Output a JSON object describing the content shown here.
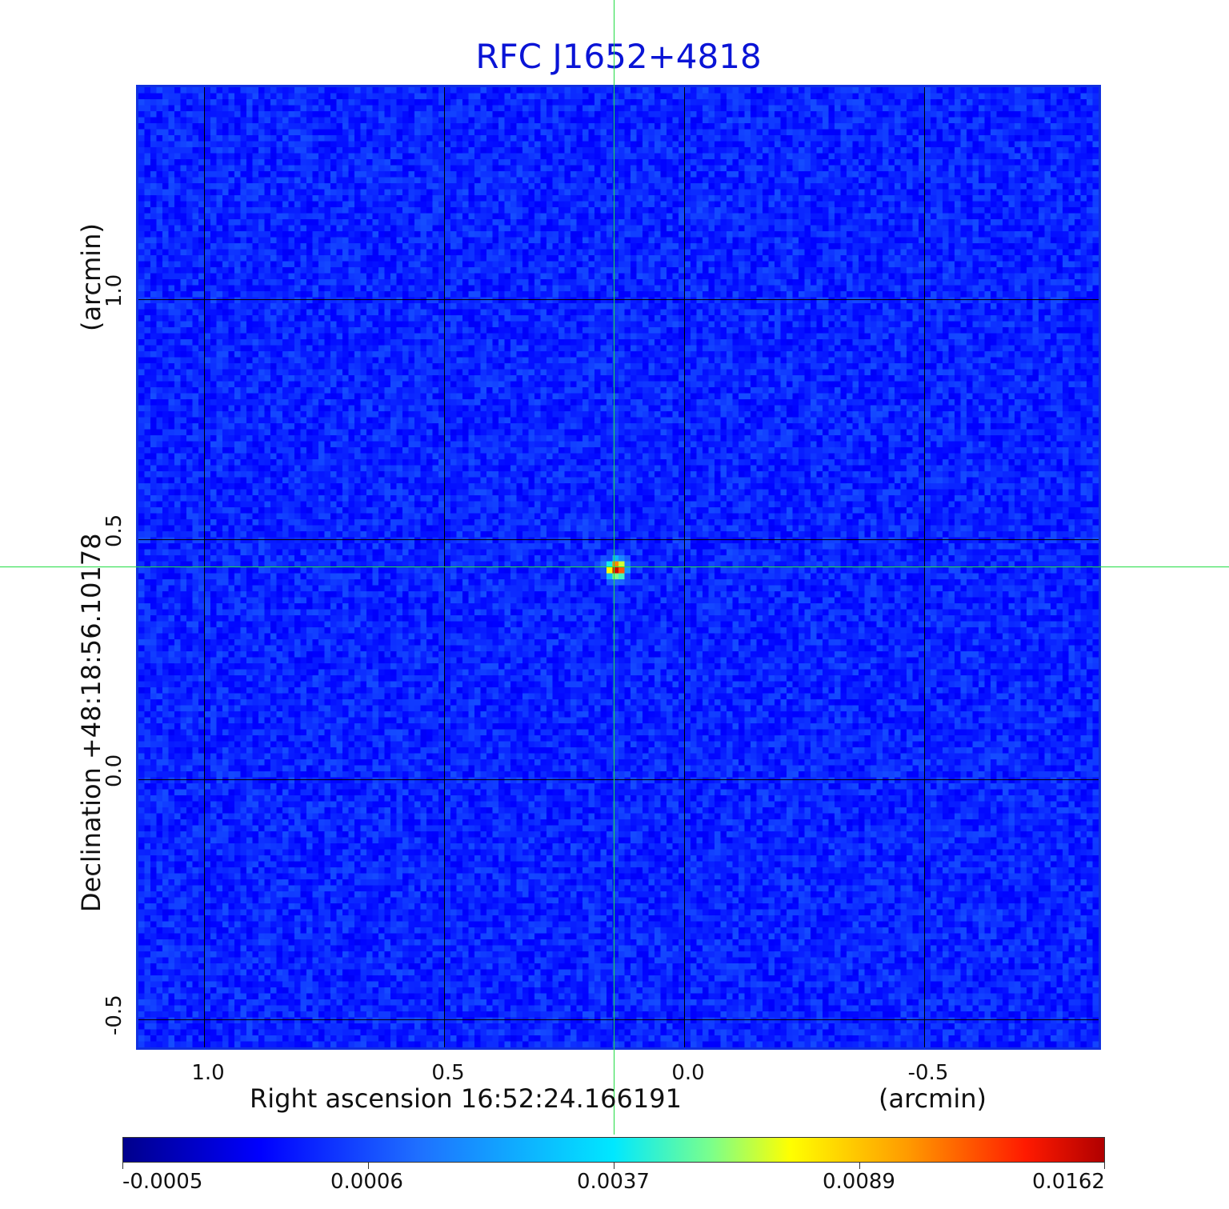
{
  "title": "RFC J1652+4818",
  "x_axis": {
    "label": "Right ascension  16:52:24.166191",
    "unit": "(arcmin)",
    "ticks": [
      "1.0",
      "0.5",
      "0.0",
      "-0.5"
    ]
  },
  "y_axis": {
    "label": "Declination  +48:18:56.10178",
    "unit": "(arcmin)",
    "ticks": [
      "1.0",
      "0.5",
      "0.0",
      "-0.5"
    ]
  },
  "colorbar": {
    "ticks": [
      "-0.0005",
      "0.0006",
      "0.0037",
      "0.0089",
      "0.0162"
    ]
  },
  "colors": {
    "background_field": "#1a6ef0",
    "crosshair": "#22dd44",
    "title": "#0a14d6"
  }
}
